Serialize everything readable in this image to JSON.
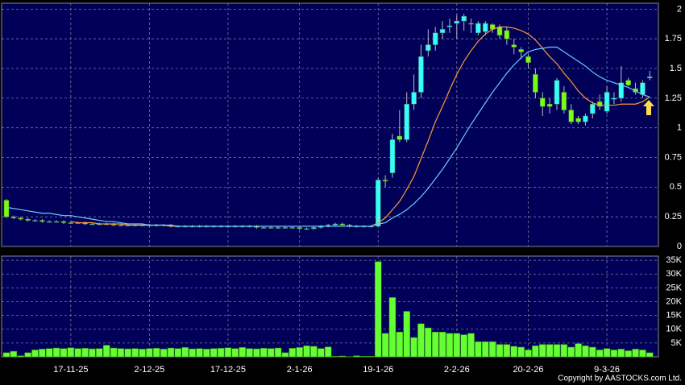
{
  "chart_data": {
    "type": "candlestick",
    "categories": [
      null,
      null,
      null,
      null,
      null,
      null,
      null,
      null,
      null,
      "17-11-25",
      null,
      null,
      null,
      null,
      null,
      null,
      null,
      null,
      null,
      null,
      "2-12-25",
      null,
      null,
      null,
      null,
      null,
      null,
      null,
      null,
      null,
      null,
      "17-12-25",
      null,
      null,
      null,
      null,
      null,
      null,
      null,
      null,
      null,
      "2-1-26",
      null,
      null,
      null,
      null,
      null,
      null,
      null,
      null,
      null,
      null,
      "19-1-26",
      null,
      null,
      null,
      null,
      null,
      null,
      null,
      null,
      null,
      null,
      "2-2-26",
      null,
      null,
      null,
      null,
      null,
      null,
      null,
      null,
      null,
      "20-2-26",
      null,
      null,
      null,
      null,
      null,
      null,
      null,
      null,
      null,
      null,
      "9-3-26",
      null,
      null,
      null,
      null,
      null,
      null
    ],
    "open": [
      0.39,
      0.25,
      0.24,
      0.23,
      0.22,
      0.22,
      0.21,
      0.21,
      0.21,
      0.2,
      0.2,
      0.2,
      0.19,
      0.19,
      0.19,
      0.19,
      0.18,
      0.18,
      0.18,
      0.18,
      0.18,
      0.18,
      0.18,
      0.18,
      0.17,
      0.17,
      0.17,
      0.17,
      0.17,
      0.17,
      0.17,
      0.17,
      0.17,
      0.17,
      0.17,
      0.17,
      0.16,
      0.16,
      0.16,
      0.16,
      0.16,
      0.16,
      0.15,
      0.15,
      0.16,
      0.17,
      0.18,
      0.19,
      0.18,
      0.17,
      0.17,
      0.17,
      0.17,
      0.56,
      0.62,
      0.93,
      0.9,
      1.2,
      1.3,
      1.65,
      1.7,
      1.8,
      1.85,
      1.88,
      1.9,
      1.88,
      1.8,
      1.81,
      1.87,
      1.85,
      1.82,
      1.7,
      1.66,
      1.6,
      1.45,
      1.25,
      1.2,
      1.2,
      1.3,
      1.15,
      1.08,
      1.05,
      1.12,
      1.22,
      1.14,
      1.24,
      1.25,
      1.4,
      1.33,
      1.28,
      1.42
    ],
    "high": [
      0.4,
      0.26,
      0.25,
      0.24,
      0.23,
      0.23,
      0.22,
      0.22,
      0.22,
      0.21,
      0.21,
      0.21,
      0.2,
      0.2,
      0.2,
      0.2,
      0.19,
      0.19,
      0.19,
      0.19,
      0.19,
      0.19,
      0.19,
      0.19,
      0.18,
      0.18,
      0.18,
      0.18,
      0.18,
      0.18,
      0.18,
      0.18,
      0.18,
      0.18,
      0.18,
      0.18,
      0.17,
      0.17,
      0.17,
      0.17,
      0.17,
      0.17,
      0.16,
      0.17,
      0.18,
      0.19,
      0.2,
      0.2,
      0.19,
      0.18,
      0.18,
      0.18,
      0.58,
      0.6,
      0.95,
      1.15,
      1.3,
      1.45,
      1.7,
      1.83,
      1.85,
      1.9,
      1.92,
      1.95,
      1.96,
      1.92,
      1.9,
      1.9,
      1.88,
      1.87,
      1.85,
      1.75,
      1.68,
      1.62,
      1.5,
      1.3,
      1.25,
      1.42,
      1.35,
      1.2,
      1.1,
      1.12,
      1.22,
      1.28,
      1.35,
      1.3,
      1.52,
      1.42,
      1.38,
      1.4,
      1.48
    ],
    "low": [
      0.24,
      0.23,
      0.22,
      0.21,
      0.21,
      0.2,
      0.2,
      0.2,
      0.19,
      0.19,
      0.19,
      0.18,
      0.18,
      0.18,
      0.18,
      0.17,
      0.17,
      0.17,
      0.17,
      0.17,
      0.17,
      0.17,
      0.17,
      0.16,
      0.16,
      0.16,
      0.16,
      0.16,
      0.16,
      0.16,
      0.16,
      0.16,
      0.16,
      0.16,
      0.16,
      0.15,
      0.15,
      0.15,
      0.15,
      0.15,
      0.15,
      0.14,
      0.14,
      0.14,
      0.15,
      0.16,
      0.17,
      0.17,
      0.16,
      0.16,
      0.16,
      0.16,
      0.17,
      0.5,
      0.58,
      0.88,
      0.88,
      1.15,
      1.25,
      1.6,
      1.65,
      1.75,
      1.8,
      1.75,
      1.82,
      1.8,
      1.78,
      1.78,
      1.8,
      1.75,
      1.7,
      1.62,
      1.58,
      1.5,
      1.25,
      1.1,
      1.12,
      1.15,
      1.12,
      1.03,
      1.03,
      1.02,
      1.08,
      1.15,
      1.12,
      1.2,
      1.22,
      1.35,
      1.28,
      1.25,
      1.4
    ],
    "close": [
      0.25,
      0.24,
      0.23,
      0.22,
      0.22,
      0.21,
      0.21,
      0.21,
      0.2,
      0.2,
      0.2,
      0.19,
      0.19,
      0.19,
      0.19,
      0.18,
      0.18,
      0.18,
      0.18,
      0.18,
      0.18,
      0.18,
      0.18,
      0.17,
      0.17,
      0.17,
      0.17,
      0.17,
      0.17,
      0.17,
      0.17,
      0.17,
      0.17,
      0.17,
      0.17,
      0.16,
      0.16,
      0.16,
      0.16,
      0.16,
      0.16,
      0.15,
      0.15,
      0.16,
      0.17,
      0.18,
      0.19,
      0.18,
      0.17,
      0.17,
      0.17,
      0.17,
      0.56,
      0.55,
      0.9,
      0.9,
      1.2,
      1.3,
      1.6,
      1.7,
      1.8,
      1.83,
      1.86,
      1.9,
      1.94,
      1.88,
      1.88,
      1.88,
      1.83,
      1.78,
      1.75,
      1.68,
      1.64,
      1.55,
      1.3,
      1.18,
      1.18,
      1.4,
      1.15,
      1.05,
      1.05,
      1.1,
      1.2,
      1.18,
      1.3,
      1.25,
      1.38,
      1.36,
      1.3,
      1.38,
      1.43
    ],
    "up_color": "#33ffff",
    "down_color": "#77ff11",
    "lines": [
      {
        "color": "#ff9933",
        "values": [
          null,
          null,
          null,
          null,
          null,
          null,
          null,
          null,
          null,
          0.21,
          0.2,
          0.2,
          0.2,
          0.19,
          0.19,
          0.19,
          0.19,
          0.18,
          0.18,
          0.18,
          0.18,
          0.18,
          0.18,
          0.17,
          0.17,
          0.17,
          0.17,
          0.17,
          0.17,
          0.17,
          0.17,
          0.17,
          0.17,
          0.17,
          0.17,
          0.17,
          0.17,
          0.17,
          0.17,
          0.17,
          0.17,
          0.17,
          0.17,
          0.17,
          0.17,
          0.17,
          0.17,
          0.17,
          0.17,
          0.17,
          0.17,
          0.17,
          0.2,
          0.24,
          0.31,
          0.38,
          0.48,
          0.59,
          0.74,
          0.89,
          1.05,
          1.18,
          1.32,
          1.45,
          1.56,
          1.65,
          1.73,
          1.79,
          1.83,
          1.85,
          1.85,
          1.84,
          1.82,
          1.79,
          1.74,
          1.67,
          1.6,
          1.54,
          1.46,
          1.39,
          1.31,
          1.25,
          1.21,
          1.19,
          1.19,
          1.19,
          1.2,
          1.2,
          1.2,
          1.22,
          1.26
        ]
      },
      {
        "color": "#66ccff",
        "values": [
          0.33,
          0.32,
          0.31,
          0.3,
          0.29,
          0.28,
          0.28,
          0.27,
          0.26,
          0.26,
          0.25,
          0.24,
          0.23,
          0.22,
          0.21,
          0.21,
          0.2,
          0.19,
          0.19,
          0.19,
          0.18,
          0.18,
          0.18,
          0.18,
          0.17,
          0.17,
          0.17,
          0.17,
          0.17,
          0.17,
          0.17,
          0.17,
          0.17,
          0.17,
          0.17,
          0.17,
          0.17,
          0.17,
          0.17,
          0.17,
          0.17,
          0.17,
          0.17,
          0.17,
          0.17,
          0.17,
          0.17,
          0.17,
          0.17,
          0.17,
          0.17,
          0.17,
          0.19,
          0.2,
          0.24,
          0.27,
          0.31,
          0.36,
          0.42,
          0.49,
          0.57,
          0.65,
          0.74,
          0.83,
          0.93,
          1.03,
          1.12,
          1.21,
          1.3,
          1.38,
          1.46,
          1.53,
          1.59,
          1.64,
          1.66,
          1.67,
          1.68,
          1.68,
          1.64,
          1.6,
          1.56,
          1.52,
          1.47,
          1.43,
          1.4,
          1.38,
          1.36,
          1.34,
          1.31,
          1.28,
          1.26
        ]
      }
    ],
    "ylim": [
      0,
      2.05
    ],
    "yticks": [
      0,
      0.25,
      0.5,
      0.75,
      1,
      1.25,
      1.5,
      1.75,
      2
    ],
    "grid": true,
    "volume": {
      "color": "#66ff33",
      "values": [
        1500,
        2000,
        400,
        1500,
        2500,
        2800,
        3000,
        3200,
        3000,
        3300,
        3000,
        3100,
        2900,
        3000,
        4200,
        3200,
        3000,
        2900,
        3000,
        2800,
        3000,
        3100,
        2800,
        3200,
        3000,
        3400,
        2900,
        3000,
        2800,
        3000,
        3100,
        3300,
        3000,
        3400,
        3000,
        2900,
        3100,
        3000,
        3200,
        1500,
        3100,
        3400,
        4000,
        3800,
        3000,
        3600,
        200,
        300,
        100,
        400,
        200,
        200,
        34500,
        8500,
        21500,
        9000,
        16500,
        7000,
        12000,
        10500,
        9000,
        9000,
        8500,
        8500,
        8000,
        8500,
        5500,
        5500,
        5500,
        4500,
        4500,
        3800,
        3500,
        2500,
        4000,
        4500,
        4500,
        4500,
        4500,
        3500,
        4800,
        4000,
        3500,
        2500,
        3000,
        2500,
        2800,
        2200,
        2800,
        2500,
        1500
      ],
      "ylim": [
        0,
        36500
      ],
      "yticks": [
        {
          "value": 5000,
          "label": "5K"
        },
        {
          "value": 10000,
          "label": "10K"
        },
        {
          "value": 15000,
          "label": "15K"
        },
        {
          "value": 20000,
          "label": "20K"
        },
        {
          "value": 25000,
          "label": "25K"
        },
        {
          "value": 30000,
          "label": "30K"
        },
        {
          "value": 35000,
          "label": "35K"
        }
      ]
    },
    "source": "Copyright by AASTOCKS.com Ltd."
  }
}
